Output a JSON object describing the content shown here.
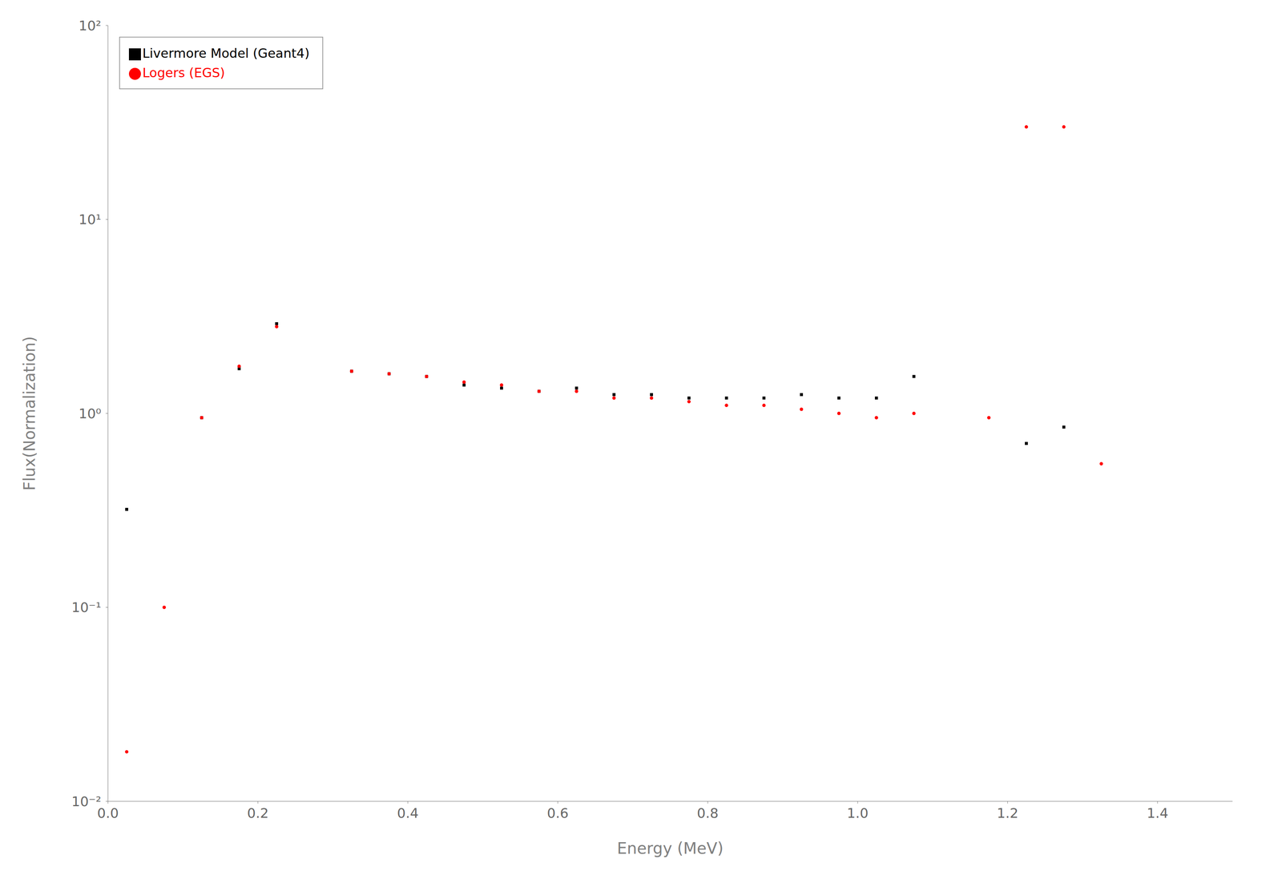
{
  "chart_data": {
    "type": "scatter",
    "xlabel": "Energy (MeV)",
    "ylabel": "Flux(Normalization)",
    "log": "y",
    "grid": false,
    "legend": "upper left",
    "xlim": [
      0.0,
      1.5
    ],
    "ylim": [
      0.01,
      100
    ],
    "xticks": [
      {
        "value": 0,
        "label": "0.0"
      },
      0.2,
      0.4,
      0.6,
      0.8,
      {
        "value": 1,
        "label": "1.0"
      },
      1.2,
      1.4
    ],
    "yticks": [
      {
        "value": 0.01,
        "label": "10⁻²"
      },
      {
        "value": 0.1,
        "label": "10⁻¹"
      },
      {
        "value": 1,
        "label": "10⁰"
      },
      {
        "value": 10,
        "label": "10¹"
      },
      {
        "value": 100,
        "label": "10²"
      }
    ],
    "series": [
      {
        "name": "Livermore Model (Geant4)",
        "color": "black",
        "marker": "square",
        "x": [
          0.025,
          0.125,
          0.175,
          0.225,
          0.325,
          0.375,
          0.425,
          0.475,
          0.525,
          0.575,
          0.625,
          0.675,
          0.725,
          0.775,
          0.825,
          0.875,
          0.925,
          0.975,
          1.025,
          1.075,
          1.225,
          1.275
        ],
        "values": [
          0.32,
          0.95,
          1.7,
          2.9,
          1.65,
          1.6,
          1.55,
          1.4,
          1.35,
          1.3,
          1.35,
          1.25,
          1.25,
          1.2,
          1.2,
          1.2,
          1.25,
          1.2,
          1.2,
          1.55,
          0.7,
          0.85
        ]
      },
      {
        "name": "Logers (EGS)",
        "color": "red",
        "marker": "circle",
        "x": [
          0.025,
          0.075,
          0.125,
          0.175,
          0.225,
          0.325,
          0.375,
          0.425,
          0.475,
          0.525,
          0.575,
          0.625,
          0.675,
          0.725,
          0.775,
          0.825,
          0.875,
          0.925,
          0.975,
          1.025,
          1.075,
          1.175,
          1.225,
          1.275,
          1.325
        ],
        "values": [
          0.018,
          0.1,
          0.95,
          1.75,
          2.8,
          1.65,
          1.6,
          1.55,
          1.45,
          1.4,
          1.3,
          1.3,
          1.2,
          1.2,
          1.15,
          1.1,
          1.1,
          1.05,
          1.0,
          0.95,
          1.0,
          0.95,
          30.0,
          30.0,
          0.55
        ]
      }
    ]
  }
}
